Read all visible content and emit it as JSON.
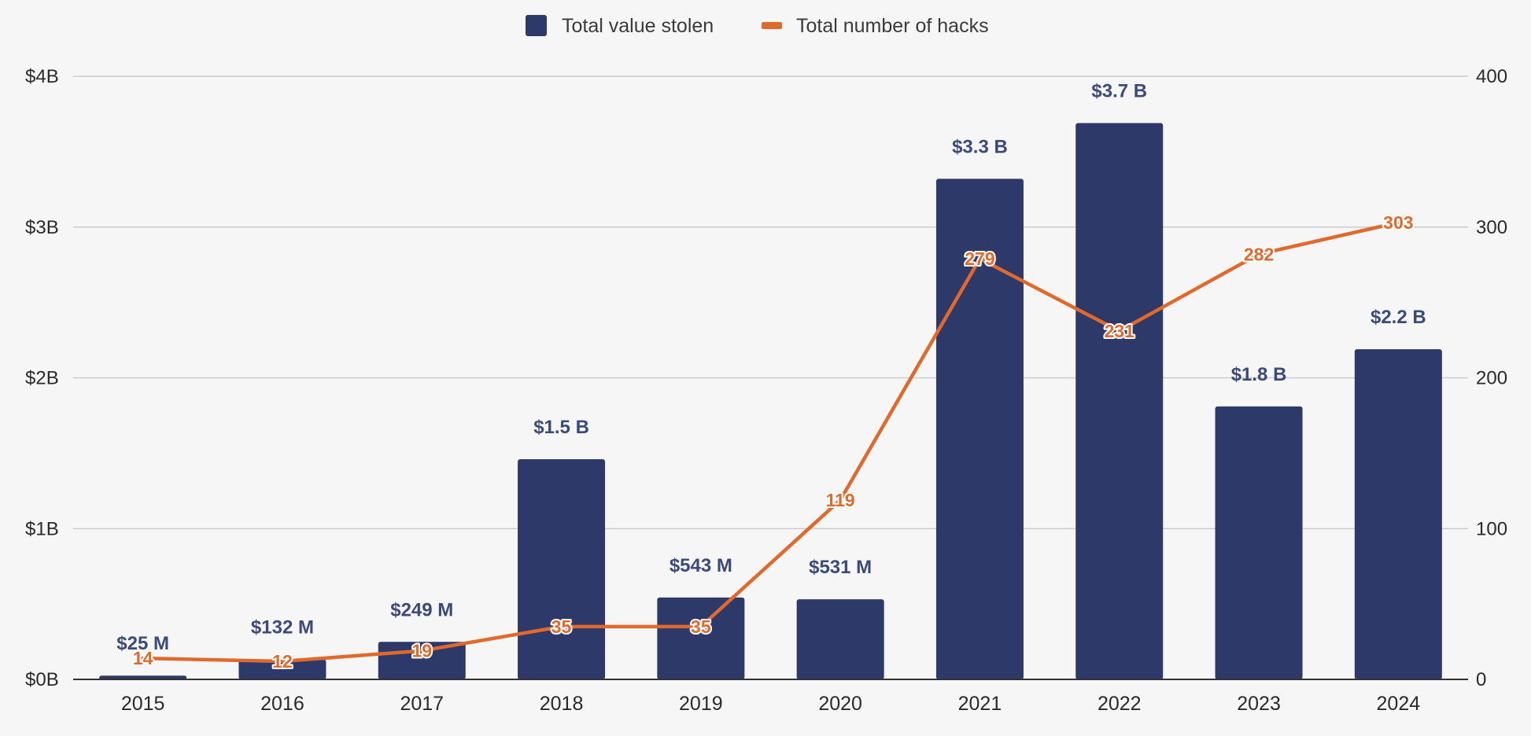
{
  "colors": {
    "bar": "#2d3968",
    "line": "#e0692b",
    "grid": "#cccccc",
    "axis": "#333333",
    "bar_label": "#3b4a7c"
  },
  "legend": [
    {
      "label": "Total value stolen",
      "icon": "square-swatch"
    },
    {
      "label": "Total number of hacks",
      "icon": "line-swatch"
    }
  ],
  "chart_data": {
    "type": "bar",
    "title": "",
    "categories": [
      "2015",
      "2016",
      "2017",
      "2018",
      "2019",
      "2020",
      "2021",
      "2022",
      "2023",
      "2024"
    ],
    "series": [
      {
        "name": "Total value stolen",
        "type": "bar",
        "axis": "left",
        "unit": "USD billions",
        "values": [
          0.025,
          0.132,
          0.249,
          1.46,
          0.543,
          0.531,
          3.32,
          3.69,
          1.81,
          2.19
        ],
        "labels": [
          "$25  M",
          "$132  M",
          "$249  M",
          "$1.5 B",
          "$543  M",
          "$531  M",
          "$3.3 B",
          "$3.7 B",
          "$1.8 B",
          "$2.2 B"
        ]
      },
      {
        "name": "Total number of hacks",
        "type": "line",
        "axis": "right",
        "values": [
          14,
          12,
          19,
          35,
          35,
          119,
          279,
          231,
          282,
          303
        ],
        "labels": [
          "14",
          "12",
          "19",
          "35",
          "35",
          "119",
          "279",
          "231",
          "282",
          "303"
        ]
      }
    ],
    "y_left": {
      "min": 0,
      "max": 4,
      "ticks": [
        0,
        1,
        2,
        3,
        4
      ],
      "tick_labels": [
        "$0B",
        "$1B",
        "$2B",
        "$3B",
        "$4B"
      ]
    },
    "y_right": {
      "min": 0,
      "max": 400,
      "ticks": [
        0,
        100,
        200,
        300,
        400
      ],
      "tick_labels": [
        "0",
        "100",
        "200",
        "300",
        "400"
      ]
    },
    "grid": true,
    "legend_position": "top-center"
  }
}
